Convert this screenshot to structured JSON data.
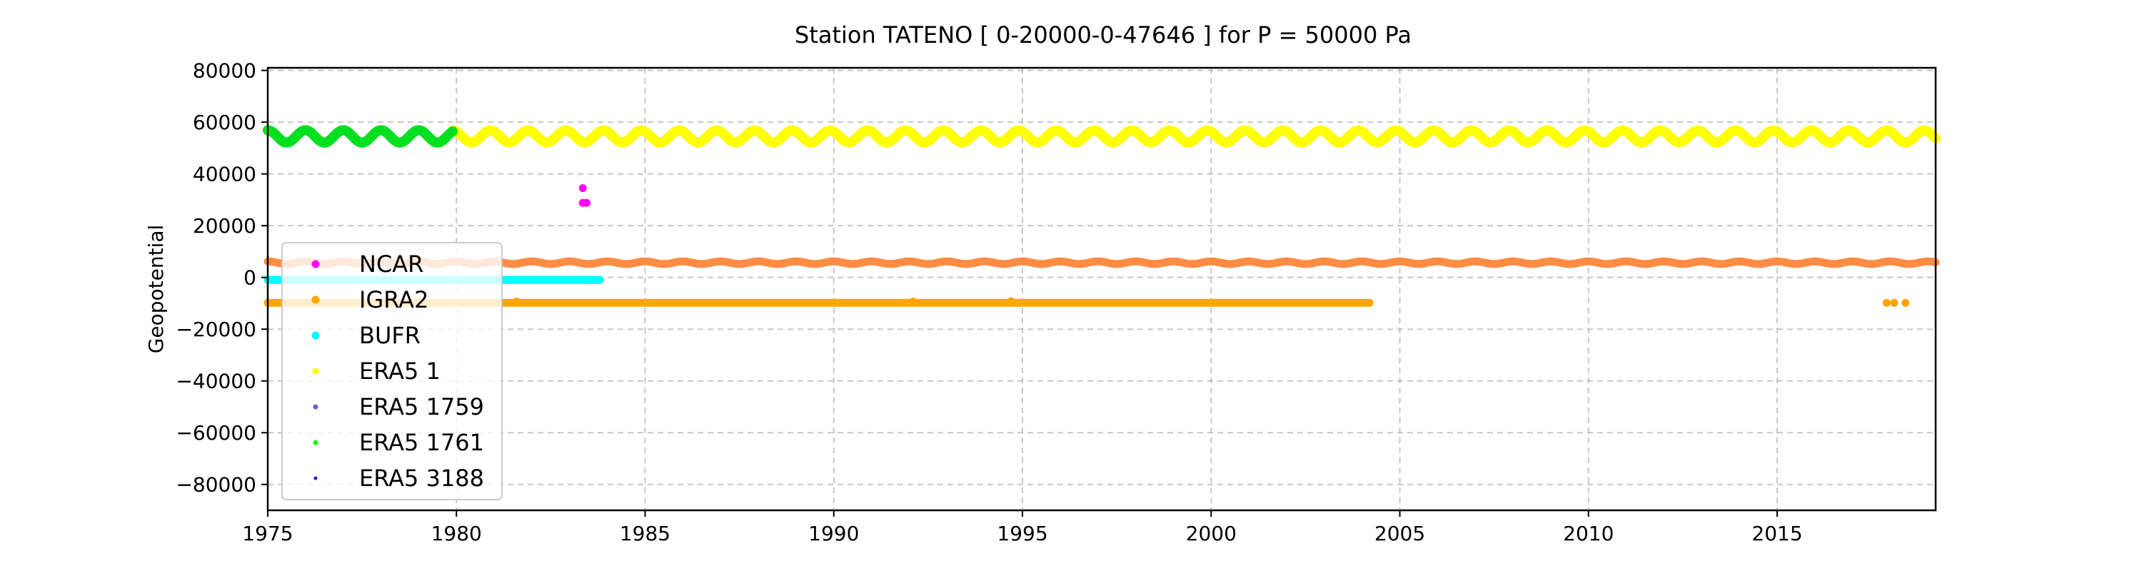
{
  "chart_data": {
    "type": "scatter",
    "title": "Station  TATENO [ 0-20000-0-47646 ]  for P = 50000 Pa",
    "xlabel": "",
    "ylabel": "Geopotential",
    "xlim": [
      1975,
      2019.2
    ],
    "ylim": [
      -90000,
      81000
    ],
    "x_ticks": [
      1975,
      1980,
      1985,
      1990,
      1995,
      2000,
      2005,
      2010,
      2015
    ],
    "y_ticks": [
      -80000,
      -60000,
      -40000,
      -20000,
      0,
      20000,
      40000,
      60000,
      80000
    ],
    "x_tick_labels": [
      "1975",
      "1980",
      "1985",
      "1990",
      "1995",
      "2000",
      "2005",
      "2010",
      "2015"
    ],
    "y_tick_labels": [
      "−80000",
      "−60000",
      "−40000",
      "−20000",
      "0",
      "20000",
      "40000",
      "60000",
      "80000"
    ],
    "grid": true,
    "legend_position": "lower-left",
    "series": [
      {
        "name": "NCAR",
        "color": "#ff00ff",
        "marker_size": "large",
        "points": [
          [
            1983.35,
            34500
          ],
          [
            1983.35,
            28800
          ],
          [
            1983.45,
            28800
          ]
        ]
      },
      {
        "name": "IGRA2",
        "color": "#ffa500",
        "marker_size": "large",
        "bands": [
          {
            "x_start": 1975,
            "x_end": 2019.2,
            "center": 5700,
            "amplitude": 500,
            "period": 1,
            "color": "#ff8c44"
          },
          {
            "x_start": 1975,
            "x_end": 2004.2,
            "center": -9800,
            "amplitude": 0,
            "period": 1,
            "color": "#ffa500"
          }
        ],
        "points": [
          [
            1981.6,
            -9300
          ],
          [
            1992.1,
            -9300
          ],
          [
            1994.7,
            -9200
          ],
          [
            2017.9,
            -9800
          ],
          [
            2018.1,
            -9800
          ],
          [
            2018.4,
            -9800
          ]
        ]
      },
      {
        "name": "BUFR",
        "color": "#00ffff",
        "marker_size": "large",
        "bands": [
          {
            "x_start": 1975,
            "x_end": 1983.8,
            "center": -1000,
            "amplitude": 0,
            "period": 1,
            "color": "#00ffff"
          }
        ]
      },
      {
        "name": "ERA5 1",
        "color": "#ffff00",
        "marker_size": "medium",
        "bands": [
          {
            "x_start": 1979.9,
            "x_end": 2019.2,
            "center": 54500,
            "amplitude": 2300,
            "period": 1,
            "color": "#ffff00"
          }
        ]
      },
      {
        "name": "ERA5 1759",
        "color": "#7b52d8",
        "marker_size": "small",
        "points": []
      },
      {
        "name": "ERA5 1761",
        "color": "#00ff00",
        "marker_size": "small",
        "bands": [
          {
            "x_start": 1975,
            "x_end": 1979.9,
            "center": 54500,
            "amplitude": 2400,
            "period": 1,
            "color": "#00e020"
          }
        ]
      },
      {
        "name": "ERA5 3188",
        "color": "#1a1ad0",
        "marker_size": "tiny",
        "points": []
      }
    ]
  }
}
